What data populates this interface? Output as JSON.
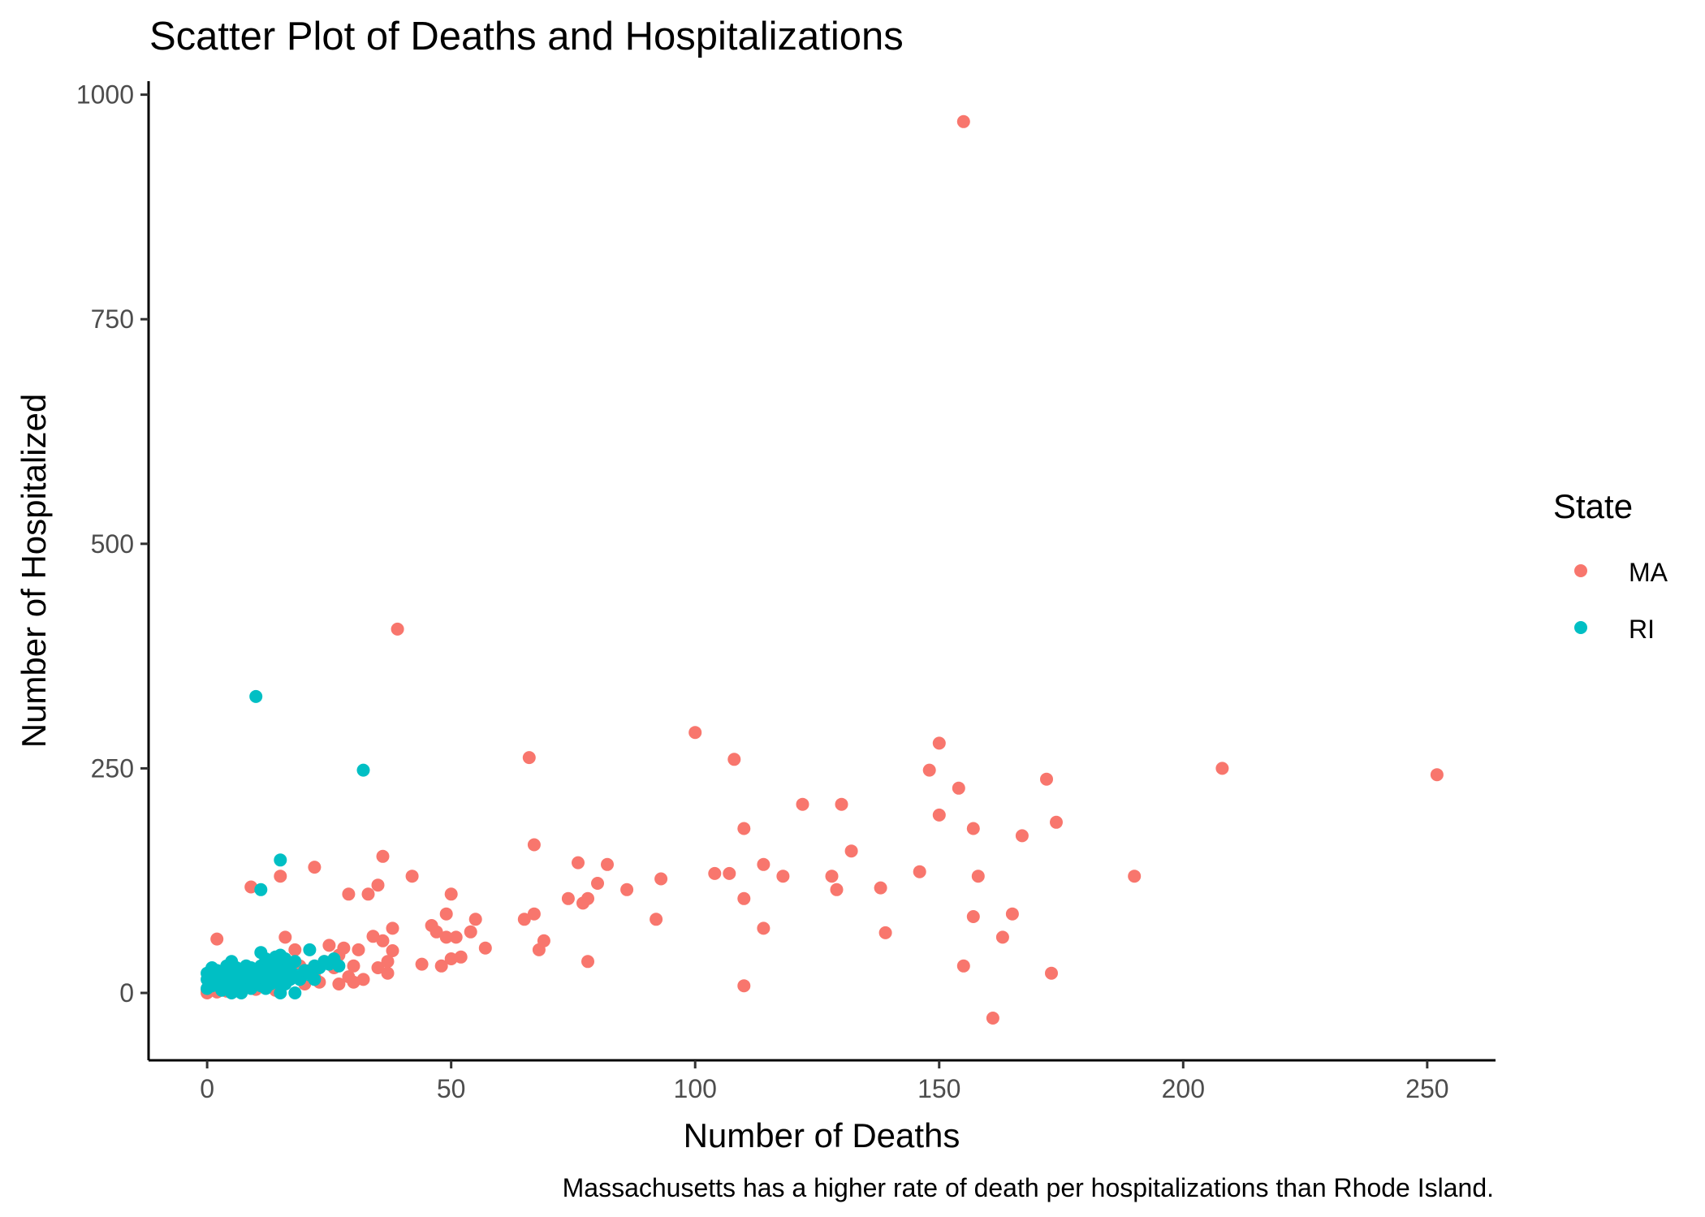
{
  "chart_data": {
    "type": "scatter",
    "title": "Scatter Plot of Deaths and Hospitalizations",
    "xlabel": "Number of Deaths",
    "ylabel": "Number of Hospitalized",
    "caption": "Massachusetts has a higher rate of death per hospitalizations than Rhode Island.",
    "xlim": [
      -12,
      264
    ],
    "ylim": [
      -75,
      1015
    ],
    "xticks": [
      0,
      50,
      100,
      150,
      200,
      250
    ],
    "yticks": [
      0,
      250,
      500,
      750,
      1000
    ],
    "grid": false,
    "legend": {
      "title": "State",
      "position": "right"
    },
    "series": [
      {
        "name": "MA",
        "color": "#F8766D",
        "points": [
          [
            0,
            0
          ],
          [
            0,
            3
          ],
          [
            1,
            6
          ],
          [
            1,
            10
          ],
          [
            2,
            1
          ],
          [
            2,
            60
          ],
          [
            3,
            5
          ],
          [
            3,
            12
          ],
          [
            4,
            2
          ],
          [
            5,
            8
          ],
          [
            6,
            3
          ],
          [
            6,
            15
          ],
          [
            7,
            5
          ],
          [
            8,
            10
          ],
          [
            9,
            12
          ],
          [
            9,
            118
          ],
          [
            10,
            4
          ],
          [
            11,
            20
          ],
          [
            12,
            8
          ],
          [
            13,
            14
          ],
          [
            14,
            3
          ],
          [
            15,
            130
          ],
          [
            15,
            8
          ],
          [
            16,
            62
          ],
          [
            17,
            20
          ],
          [
            18,
            48
          ],
          [
            19,
            30
          ],
          [
            20,
            10
          ],
          [
            21,
            25
          ],
          [
            22,
            140
          ],
          [
            22,
            18
          ],
          [
            23,
            12
          ],
          [
            24,
            35
          ],
          [
            25,
            53
          ],
          [
            26,
            28
          ],
          [
            27,
            42
          ],
          [
            27,
            10
          ],
          [
            28,
            50
          ],
          [
            29,
            110
          ],
          [
            29,
            18
          ],
          [
            30,
            30
          ],
          [
            30,
            12
          ],
          [
            31,
            48
          ],
          [
            32,
            15
          ],
          [
            33,
            110
          ],
          [
            34,
            63
          ],
          [
            35,
            120
          ],
          [
            35,
            28
          ],
          [
            36,
            58
          ],
          [
            36,
            152
          ],
          [
            37,
            35
          ],
          [
            37,
            22
          ],
          [
            38,
            72
          ],
          [
            38,
            47
          ],
          [
            39,
            405
          ],
          [
            42,
            130
          ],
          [
            44,
            32
          ],
          [
            46,
            75
          ],
          [
            47,
            68
          ],
          [
            48,
            30
          ],
          [
            49,
            62
          ],
          [
            49,
            88
          ],
          [
            50,
            110
          ],
          [
            50,
            38
          ],
          [
            51,
            62
          ],
          [
            52,
            40
          ],
          [
            54,
            68
          ],
          [
            55,
            82
          ],
          [
            57,
            50
          ],
          [
            65,
            82
          ],
          [
            66,
            262
          ],
          [
            67,
            88
          ],
          [
            67,
            165
          ],
          [
            68,
            48
          ],
          [
            69,
            58
          ],
          [
            74,
            105
          ],
          [
            76,
            145
          ],
          [
            77,
            100
          ],
          [
            78,
            105
          ],
          [
            78,
            35
          ],
          [
            80,
            122
          ],
          [
            82,
            143
          ],
          [
            86,
            115
          ],
          [
            92,
            82
          ],
          [
            93,
            127
          ],
          [
            100,
            290
          ],
          [
            104,
            133
          ],
          [
            107,
            133
          ],
          [
            108,
            260
          ],
          [
            110,
            105
          ],
          [
            110,
            8
          ],
          [
            110,
            183
          ],
          [
            114,
            143
          ],
          [
            114,
            72
          ],
          [
            118,
            130
          ],
          [
            122,
            210
          ],
          [
            128,
            130
          ],
          [
            129,
            115
          ],
          [
            130,
            210
          ],
          [
            132,
            158
          ],
          [
            138,
            117
          ],
          [
            139,
            67
          ],
          [
            146,
            135
          ],
          [
            148,
            248
          ],
          [
            150,
            278
          ],
          [
            150,
            198
          ],
          [
            154,
            228
          ],
          [
            155,
            30
          ],
          [
            155,
            970
          ],
          [
            157,
            85
          ],
          [
            157,
            183
          ],
          [
            158,
            130
          ],
          [
            161,
            -28
          ],
          [
            163,
            62
          ],
          [
            165,
            88
          ],
          [
            167,
            175
          ],
          [
            172,
            238
          ],
          [
            173,
            22
          ],
          [
            174,
            190
          ],
          [
            190,
            130
          ],
          [
            208,
            250
          ],
          [
            252,
            243
          ]
        ]
      },
      {
        "name": "RI",
        "color": "#00BFC4",
        "points": [
          [
            0,
            5
          ],
          [
            0,
            15
          ],
          [
            0,
            22
          ],
          [
            1,
            8
          ],
          [
            1,
            18
          ],
          [
            1,
            28
          ],
          [
            2,
            10
          ],
          [
            2,
            20
          ],
          [
            2,
            25
          ],
          [
            3,
            3
          ],
          [
            3,
            12
          ],
          [
            3,
            22
          ],
          [
            4,
            6
          ],
          [
            4,
            18
          ],
          [
            4,
            30
          ],
          [
            5,
            0
          ],
          [
            5,
            10
          ],
          [
            5,
            20
          ],
          [
            5,
            35
          ],
          [
            6,
            5
          ],
          [
            6,
            15
          ],
          [
            6,
            28
          ],
          [
            7,
            0
          ],
          [
            7,
            12
          ],
          [
            7,
            22
          ],
          [
            8,
            8
          ],
          [
            8,
            18
          ],
          [
            8,
            30
          ],
          [
            9,
            5
          ],
          [
            9,
            15
          ],
          [
            9,
            28
          ],
          [
            10,
            12
          ],
          [
            10,
            22
          ],
          [
            10,
            330
          ],
          [
            11,
            8
          ],
          [
            11,
            18
          ],
          [
            11,
            30
          ],
          [
            11,
            45
          ],
          [
            11,
            115
          ],
          [
            12,
            5
          ],
          [
            12,
            15
          ],
          [
            12,
            25
          ],
          [
            12,
            38
          ],
          [
            13,
            10
          ],
          [
            13,
            22
          ],
          [
            13,
            35
          ],
          [
            14,
            12
          ],
          [
            14,
            28
          ],
          [
            14,
            40
          ],
          [
            15,
            0
          ],
          [
            15,
            18
          ],
          [
            15,
            30
          ],
          [
            15,
            42
          ],
          [
            15,
            148
          ],
          [
            16,
            10
          ],
          [
            16,
            25
          ],
          [
            16,
            38
          ],
          [
            17,
            15
          ],
          [
            17,
            28
          ],
          [
            18,
            0
          ],
          [
            18,
            20
          ],
          [
            18,
            35
          ],
          [
            19,
            15
          ],
          [
            20,
            25
          ],
          [
            21,
            20
          ],
          [
            21,
            48
          ],
          [
            22,
            15
          ],
          [
            22,
            30
          ],
          [
            23,
            28
          ],
          [
            24,
            35
          ],
          [
            25,
            32
          ],
          [
            26,
            38
          ],
          [
            27,
            30
          ],
          [
            32,
            248
          ]
        ]
      }
    ]
  }
}
